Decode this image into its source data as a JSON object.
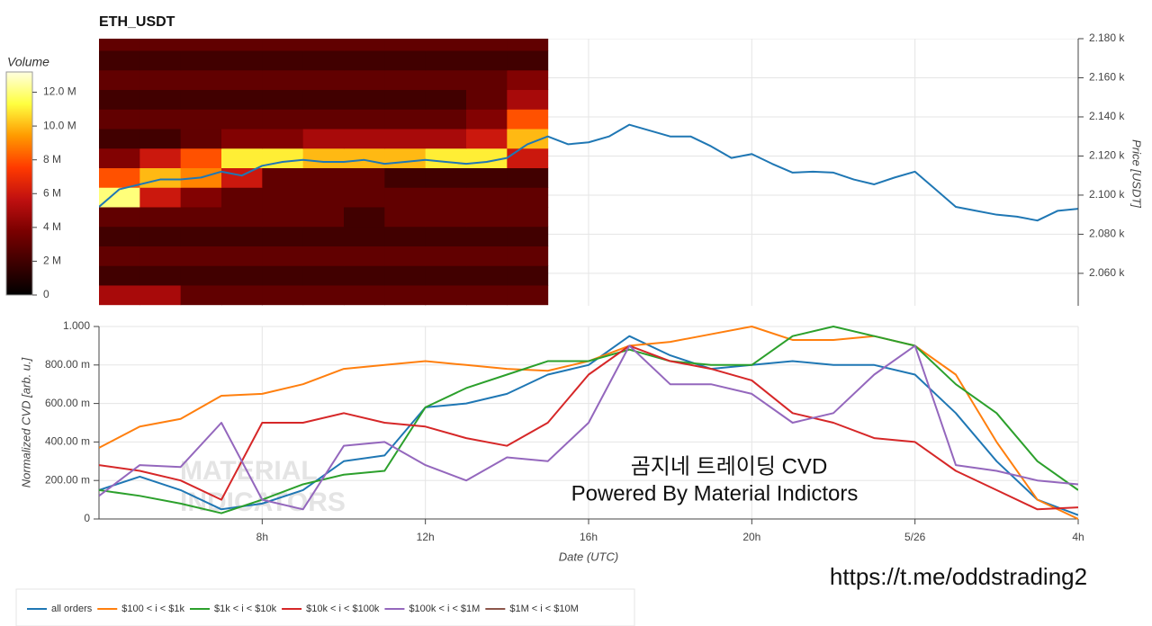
{
  "chart_data": [
    {
      "type": "heatmap",
      "title": "ETH_USDT",
      "x_bins": [
        4,
        5,
        6,
        7,
        8,
        9,
        10,
        11,
        12,
        13,
        14,
        15
      ],
      "y_bins": [
        2044,
        2054,
        2064,
        2074,
        2084,
        2094,
        2104,
        2114,
        2124,
        2134,
        2144,
        2154,
        2164,
        2174,
        2180
      ],
      "values": [
        [
          5,
          5,
          3,
          3,
          3,
          3,
          3,
          3,
          3,
          3,
          3
        ],
        [
          2,
          2,
          2,
          2,
          2,
          2,
          2,
          2,
          2,
          2,
          2
        ],
        [
          3,
          3,
          3,
          3,
          3,
          3,
          3,
          3,
          3,
          3,
          3
        ],
        [
          2,
          2,
          2,
          2,
          2,
          2,
          2,
          2,
          2,
          2,
          2
        ],
        [
          3,
          3,
          3,
          3,
          3,
          3,
          2,
          3,
          3,
          3,
          3
        ],
        [
          12,
          6,
          4,
          3,
          3,
          3,
          3,
          3,
          3,
          3,
          3
        ],
        [
          8,
          10,
          9,
          6,
          3,
          3,
          3,
          2,
          2,
          2,
          2
        ],
        [
          4,
          6,
          8,
          11,
          11,
          10,
          10,
          10,
          11,
          11,
          6
        ],
        [
          2,
          2,
          3,
          4,
          4,
          5,
          5,
          5,
          5,
          6,
          10
        ],
        [
          3,
          3,
          3,
          3,
          3,
          3,
          3,
          3,
          3,
          4,
          8
        ],
        [
          2,
          2,
          2,
          2,
          2,
          2,
          2,
          2,
          2,
          3,
          5
        ],
        [
          3,
          3,
          3,
          3,
          3,
          3,
          3,
          3,
          3,
          3,
          4
        ],
        [
          2,
          2,
          2,
          2,
          2,
          2,
          2,
          2,
          2,
          2,
          2
        ],
        [
          3,
          3,
          3,
          3,
          3,
          3,
          3,
          3,
          3,
          3,
          3
        ]
      ],
      "colormap": [
        "#000000",
        "#3d0000",
        "#7a0000",
        "#c01010",
        "#ff3a00",
        "#ff9a00",
        "#ffff40",
        "#ffffe0"
      ],
      "colorbar": {
        "title": "Volume",
        "lim": [
          0,
          13.2
        ],
        "ticks": [
          0,
          {
            "value": 2,
            "label": "2 M"
          },
          {
            "value": 4,
            "label": "4 M"
          },
          {
            "value": 6,
            "label": "6 M"
          },
          {
            "value": 8,
            "label": "8 M"
          },
          {
            "value": 10,
            "label": "10.0 M"
          },
          {
            "value": 12,
            "label": "12.0 M"
          }
        ]
      },
      "xlim": [
        4,
        28
      ],
      "xticks": [
        8,
        12,
        16,
        20,
        24
      ],
      "y2lim": [
        2043.4,
        2180
      ],
      "y2ticks": [
        {
          "value": 2060,
          "label": "2.060 k"
        },
        {
          "value": 2080,
          "label": "2.080 k"
        },
        {
          "value": 2100,
          "label": "2.100 k"
        },
        {
          "value": 2120,
          "label": "2.120 k"
        },
        {
          "value": 2140,
          "label": "2.140 k"
        },
        {
          "value": 2160,
          "label": "2.160 k"
        },
        {
          "value": 2180,
          "label": "2.180 k"
        }
      ],
      "y2label": "Price [USDT]",
      "grid": true,
      "line": {
        "color": "#1f77b4",
        "x": [
          4,
          4.5,
          5,
          5.5,
          6,
          6.5,
          7,
          7.5,
          8,
          8.5,
          9,
          9.5,
          10,
          10.5,
          11,
          11.5,
          12,
          12.5,
          13,
          13.5,
          14,
          14.5,
          15,
          15.5,
          16,
          16.5,
          17,
          17.5,
          18,
          18.5,
          19,
          19.5,
          20,
          20.5,
          21,
          21.5,
          22,
          22.5,
          23,
          23.5,
          24,
          24.5,
          25,
          25.5,
          26,
          26.5,
          27,
          27.5,
          28
        ],
        "values": [
          2094,
          2103,
          2105.5,
          2108,
          2108,
          2109,
          2112,
          2110,
          2115,
          2117,
          2118,
          2117,
          2117,
          2118,
          2116,
          2117,
          2118,
          2117,
          2116,
          2117,
          2119,
          2126,
          2130,
          2126,
          2127,
          2130,
          2136,
          2133,
          2130,
          2130,
          2125,
          2119,
          2121,
          2116,
          2111.5,
          2112,
          2111.5,
          2108,
          2105.5,
          2109,
          2112,
          2103,
          2094,
          2092,
          2090,
          2089,
          2087,
          2092,
          2093
        ]
      }
    },
    {
      "type": "line",
      "xlabel": "Date (UTC)",
      "ylabel": "Normalized CVD [arb. u.]",
      "x": [
        4,
        5,
        6,
        7,
        8,
        9,
        10,
        11,
        12,
        13,
        14,
        15,
        16,
        17,
        18,
        19,
        20,
        21,
        22,
        23,
        24,
        25,
        26,
        27,
        28
      ],
      "xlim": [
        4,
        28
      ],
      "xticks": [
        {
          "value": 8,
          "label": "8h"
        },
        {
          "value": 12,
          "label": "12h"
        },
        {
          "value": 16,
          "label": "16h"
        },
        {
          "value": 20,
          "label": "20h"
        },
        {
          "value": 24,
          "label": "5/26"
        },
        {
          "value": 28,
          "label": "4h"
        }
      ],
      "ylim": [
        0,
        1
      ],
      "yticks": [
        0,
        {
          "value": 0.2,
          "label": "200.00 m"
        },
        {
          "value": 0.4,
          "label": "400.00 m"
        },
        {
          "value": 0.6,
          "label": "600.00 m"
        },
        {
          "value": 0.8,
          "label": "800.00 m"
        },
        {
          "value": 1,
          "label": "1.000"
        }
      ],
      "grid": true,
      "legend": "below",
      "series": [
        {
          "name": "all orders",
          "color": "#1f77b4",
          "values": [
            0.15,
            0.22,
            0.15,
            0.05,
            0.08,
            0.15,
            0.3,
            0.33,
            0.58,
            0.6,
            0.65,
            0.75,
            0.8,
            0.95,
            0.85,
            0.78,
            0.8,
            0.82,
            0.8,
            0.8,
            0.75,
            0.55,
            0.3,
            0.1,
            0.02
          ]
        },
        {
          "name": "$100 < i < $1k",
          "color": "#ff7f0e",
          "values": [
            0.37,
            0.48,
            0.52,
            0.64,
            0.65,
            0.7,
            0.78,
            0.8,
            0.82,
            0.8,
            0.78,
            0.77,
            0.82,
            0.9,
            0.92,
            0.96,
            1.0,
            0.93,
            0.93,
            0.95,
            0.9,
            0.75,
            0.4,
            0.1,
            0
          ]
        },
        {
          "name": "$1k < i < $10k",
          "color": "#2ca02c",
          "values": [
            0.15,
            0.12,
            0.08,
            0.03,
            0.1,
            0.18,
            0.23,
            0.25,
            0.58,
            0.68,
            0.75,
            0.82,
            0.82,
            0.88,
            0.82,
            0.8,
            0.8,
            0.95,
            1.0,
            0.95,
            0.9,
            0.7,
            0.55,
            0.3,
            0.15
          ]
        },
        {
          "name": "$10k < i < $100k",
          "color": "#d62728",
          "values": [
            0.28,
            0.25,
            0.2,
            0.1,
            0.5,
            0.5,
            0.55,
            0.5,
            0.48,
            0.42,
            0.38,
            0.5,
            0.75,
            0.9,
            0.82,
            0.78,
            0.72,
            0.55,
            0.5,
            0.42,
            0.4,
            0.25,
            0.15,
            0.05,
            0.06
          ]
        },
        {
          "name": "$100k < i < $1M",
          "color": "#9467bd",
          "values": [
            0.12,
            0.28,
            0.27,
            0.5,
            0.1,
            0.05,
            0.38,
            0.4,
            0.28,
            0.2,
            0.32,
            0.3,
            0.5,
            0.9,
            0.7,
            0.7,
            0.65,
            0.5,
            0.55,
            0.75,
            0.9,
            0.28,
            0.25,
            0.2,
            0.18
          ]
        },
        {
          "name": "$1M < i < $10M",
          "color": "#8c564b",
          "values": [
            null,
            null,
            null,
            null,
            null,
            null,
            null,
            null,
            null,
            null,
            null,
            null,
            null,
            null,
            null,
            null,
            null,
            null,
            null,
            null,
            null,
            null,
            null,
            null,
            null
          ]
        }
      ],
      "annotations": [
        "곰지네 트레이딩 CVD",
        "Powered By Material Indictors"
      ],
      "watermark": [
        "MATERIAL",
        "INDICATORS"
      ]
    }
  ],
  "footer": "https://t.me/oddstrading2"
}
